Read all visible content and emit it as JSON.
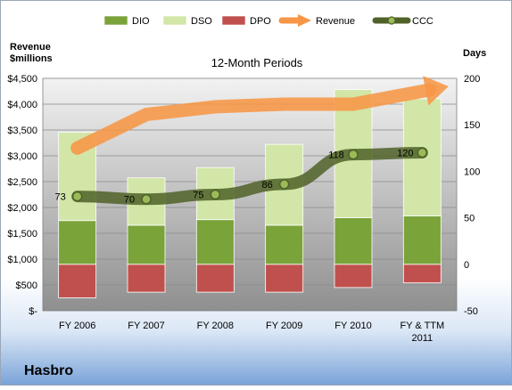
{
  "chart_data": {
    "type": "bar",
    "title": "12-Month Periods",
    "company": "Hasbro",
    "ylabel_left": "Revenue\n$millions",
    "ylabel_right": "Days",
    "categories": [
      "FY 2006",
      "FY 2007",
      "FY 2008",
      "FY 2009",
      "FY 2010",
      "FY & TTM\n2011"
    ],
    "ylim_left": [
      0,
      4500
    ],
    "yticks_left": [
      "$-",
      "$500",
      "$1,000",
      "$1,500",
      "$2,000",
      "$2,500",
      "$3,000",
      "$3,500",
      "$4,000",
      "$4,500"
    ],
    "ylim_right": [
      -50,
      200
    ],
    "yticks_right": [
      "-50",
      "0",
      "50",
      "100",
      "150",
      "200"
    ],
    "grid": true,
    "legend_position": "top",
    "series": [
      {
        "name": "DIO",
        "kind": "stacked-bar",
        "axis": "right",
        "color": "#7aa33a",
        "values": [
          47,
          42,
          48,
          42,
          50,
          52
        ]
      },
      {
        "name": "DSO",
        "kind": "stacked-bar",
        "axis": "right",
        "color": "#d2e6a8",
        "values": [
          95,
          51,
          56,
          87,
          138,
          126
        ]
      },
      {
        "name": "DPO",
        "kind": "stacked-bar",
        "axis": "right",
        "color": "#c0504d",
        "values": [
          36,
          30,
          30,
          30,
          25,
          20
        ]
      },
      {
        "name": "Revenue",
        "kind": "arrow-line",
        "axis": "left",
        "color": "#f79646",
        "values": [
          3150,
          3800,
          3950,
          4000,
          4000,
          4250
        ]
      },
      {
        "name": "CCC",
        "kind": "line",
        "axis": "right",
        "color": "#4f6228",
        "values": [
          73,
          70,
          75,
          86,
          118,
          120
        ]
      }
    ]
  }
}
